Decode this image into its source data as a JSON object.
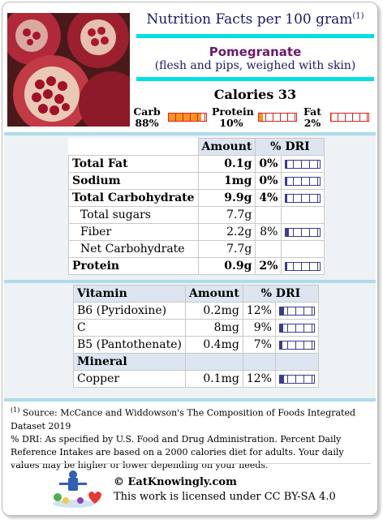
{
  "header": {
    "title": "Nutrition Facts per 100 gram",
    "footnote_mark": "(1)",
    "food_name": "Pomegranate",
    "description": "(flesh and pips, weighed with skin)",
    "calories": "Calories 33"
  },
  "macros": [
    {
      "name": "Carb",
      "percent": "88%",
      "fraction": 0.88
    },
    {
      "name": "Protein",
      "percent": "10%",
      "fraction": 0.1
    },
    {
      "name": "Fat",
      "percent": "2%",
      "fraction": 0.02
    }
  ],
  "nutrients": {
    "headers": {
      "amount": "Amount",
      "dri": "% DRI"
    },
    "rows": [
      {
        "name": "Total Fat",
        "amount": "0.1g",
        "dri": "0%",
        "dri_value": 0.0
      },
      {
        "name": "Sodium",
        "amount": "1mg",
        "dri": "0%",
        "dri_value": 0.0
      },
      {
        "name": "Total Carbohydrate",
        "amount": "9.9g",
        "dri": "4%",
        "dri_value": 0.04
      },
      {
        "name": "Total sugars",
        "amount": "7.7g",
        "dri": "",
        "dri_value": null
      },
      {
        "name": "Fiber",
        "amount": "2.2g",
        "dri": "8%",
        "dri_value": 0.08
      },
      {
        "name": "Net Carbohydrate",
        "amount": "7.7g",
        "dri": "",
        "dri_value": null
      },
      {
        "name": "Protein",
        "amount": "0.9g",
        "dri": "2%",
        "dri_value": 0.02
      }
    ]
  },
  "vitamins": {
    "headers": {
      "name": "Vitamin",
      "amount": "Amount",
      "dri": "% DRI"
    },
    "rows": [
      {
        "name": "B6 (Pyridoxine)",
        "amount": "0.2mg",
        "dri": "12%",
        "dri_value": 0.12
      },
      {
        "name": "C",
        "amount": "8mg",
        "dri": "9%",
        "dri_value": 0.09
      },
      {
        "name": "B5 (Pantothenate)",
        "amount": "0.4mg",
        "dri": "7%",
        "dri_value": 0.07
      }
    ],
    "mineral_header": "Mineral",
    "minerals": [
      {
        "name": "Copper",
        "amount": "0.1mg",
        "dri": "12%",
        "dri_value": 0.12
      }
    ]
  },
  "footnote": {
    "mark": "(1)",
    "source": " Source: McCance and Widdowson's The Composition of Foods Integrated Dataset 2019",
    "dri_note": "% DRI: As specified by U.S. Food and Drug Administration. Percent Daily Reference Intakes are based on a 2000 calories diet for adults. Your daily values may be higher or lower depending on your needs."
  },
  "footer": {
    "site": "© EatKnowingly.com",
    "license": "This work is licensed under CC BY-SA 4.0"
  },
  "colors": {
    "accent_cyan": "#00e0e6",
    "title_navy": "#1a1a6b",
    "food_purple": "#6b1a6b",
    "macro_orange": "#f7941d",
    "dri_bar": "#3b3b8f"
  },
  "icons": [
    "pomegranate-photo",
    "eatknowingly-logo-icon"
  ]
}
